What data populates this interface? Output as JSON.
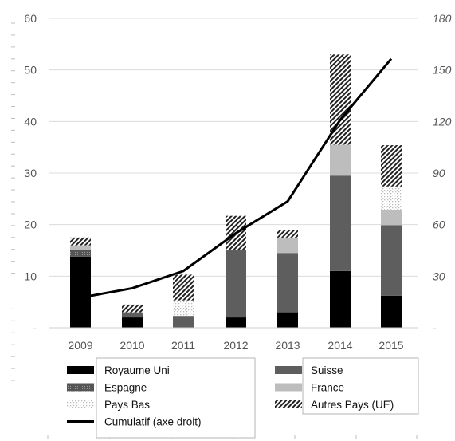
{
  "chart_data": {
    "type": "bar",
    "stacked": true,
    "categories": [
      "2009",
      "2010",
      "2011",
      "2012",
      "2013",
      "2014",
      "2015"
    ],
    "series": [
      {
        "name": "Royaume Uni",
        "values": [
          13.8,
          2,
          0,
          2,
          3,
          11,
          6.2
        ],
        "pattern": "solid-black",
        "color": "#000000"
      },
      {
        "name": "Suisse",
        "values": [
          0,
          0.8,
          2.3,
          13,
          11.5,
          18.5,
          13.7
        ],
        "pattern": "solid-dark-gray",
        "color": "#5f5f5f"
      },
      {
        "name": "Espagne",
        "values": [
          1.2,
          0.2,
          0,
          0,
          0,
          0,
          0
        ],
        "pattern": "dark-gray-dots",
        "color": "#6c6c6c"
      },
      {
        "name": "France",
        "values": [
          1,
          0,
          0,
          0,
          3,
          6,
          3
        ],
        "pattern": "solid-light-gray",
        "color": "#bdbdbd"
      },
      {
        "name": "Pays Bas",
        "values": [
          0,
          0,
          3,
          0,
          0,
          0,
          4.5
        ],
        "pattern": "light-dotted",
        "color": "#e2e2e2"
      },
      {
        "name": "Autres Pays (UE)",
        "values": [
          1.5,
          1.5,
          5,
          6.7,
          1.5,
          17.5,
          8
        ],
        "pattern": "diagonal-hatch",
        "color": "#222222"
      }
    ],
    "line_series": {
      "name": "Cumulatif (axe droit)",
      "axis": "right",
      "values": [
        17.5,
        23,
        33,
        55,
        73.5,
        121,
        156.5
      ],
      "color": "#000000"
    },
    "y_left": {
      "min": 0,
      "max": 60,
      "ticks": [
        "-",
        "10",
        "20",
        "30",
        "40",
        "50",
        "60"
      ]
    },
    "y_right": {
      "min": 0,
      "max": 180,
      "ticks": [
        "-",
        "30",
        "60",
        "90",
        "120",
        "150",
        "180"
      ]
    },
    "grid": true,
    "legend_position": "bottom",
    "title": "",
    "xlabel": "",
    "ylabel": ""
  },
  "legend": {
    "left": [
      {
        "label": "Royaume Uni",
        "key": "Royaume Uni"
      },
      {
        "label": "Espagne",
        "key": "Espagne"
      },
      {
        "label": "Pays Bas",
        "key": "Pays Bas"
      },
      {
        "label": "Cumulatif (axe droit)",
        "key": "Cumulatif (axe droit)"
      }
    ],
    "right": [
      {
        "label": "Suisse",
        "key": "Suisse"
      },
      {
        "label": "France",
        "key": "France"
      },
      {
        "label": "Autres Pays (UE)",
        "key": "Autres Pays (UE)"
      }
    ]
  }
}
